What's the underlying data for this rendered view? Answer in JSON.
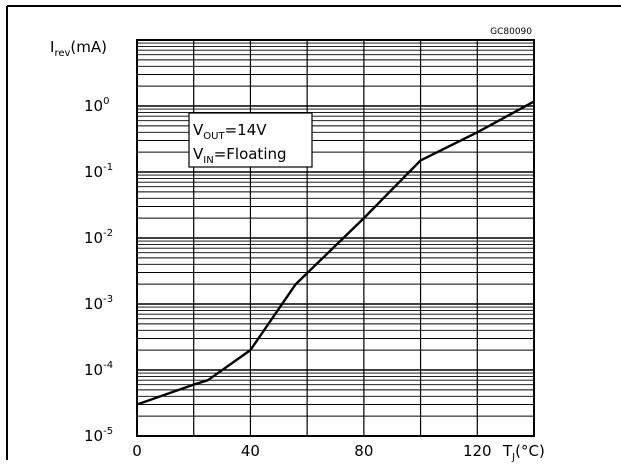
{
  "chart_data": {
    "type": "line",
    "code_label": "GC80090",
    "ylabel": {
      "main": "I",
      "sub": "rev",
      "unit": "(mA)"
    },
    "xlabel": {
      "main": "T",
      "sub": "J",
      "unit": "(°C)"
    },
    "xlim": [
      0,
      140
    ],
    "ylim": [
      1e-05,
      10
    ],
    "yscale": "log",
    "x_ticks": [
      "0",
      "40",
      "80",
      "120"
    ],
    "y_ticks": [
      {
        "base": "10",
        "exp": "-5"
      },
      {
        "base": "10",
        "exp": "-4"
      },
      {
        "base": "10",
        "exp": "-3"
      },
      {
        "base": "10",
        "exp": "-2"
      },
      {
        "base": "10",
        "exp": "-1"
      },
      {
        "base": "10",
        "exp": "0"
      }
    ],
    "grid": true,
    "annotation": {
      "line1": {
        "main": "V",
        "sub": "OUT",
        "rest": "=14V"
      },
      "line2": {
        "main": "V",
        "sub": "IN",
        "rest": "=Floating"
      }
    },
    "series": [
      {
        "x": [
          0,
          20,
          25,
          40,
          56,
          80,
          100,
          120,
          150
        ],
        "y": [
          3e-05,
          6e-05,
          7e-05,
          0.0002,
          0.002,
          0.02,
          0.15,
          0.4,
          2
        ]
      }
    ]
  }
}
